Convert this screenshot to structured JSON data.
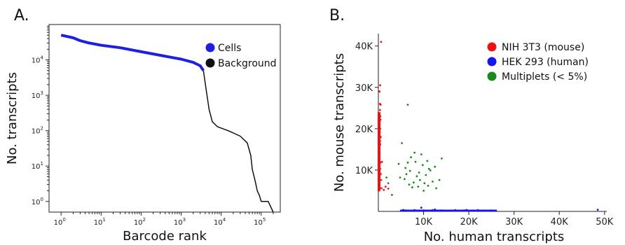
{
  "panels": {
    "a_label": "A.",
    "b_label": "B."
  },
  "chart_data": [
    {
      "panel": "A.",
      "type": "line",
      "xlabel": "Barcode rank",
      "ylabel": "No. transcripts",
      "xscale": "log",
      "yscale": "log",
      "xlim": [
        0.5,
        300000
      ],
      "ylim": [
        0.5,
        100000
      ],
      "xticks": [
        {
          "v": 1,
          "base": "10",
          "exp": "0"
        },
        {
          "v": 10,
          "base": "10",
          "exp": "1"
        },
        {
          "v": 100,
          "base": "10",
          "exp": "2"
        },
        {
          "v": 1000,
          "base": "10",
          "exp": "3"
        },
        {
          "v": 10000,
          "base": "10",
          "exp": "4"
        },
        {
          "v": 100000,
          "base": "10",
          "exp": "5"
        }
      ],
      "yticks": [
        {
          "v": 1,
          "base": "10",
          "exp": "0"
        },
        {
          "v": 10,
          "base": "10",
          "exp": "1"
        },
        {
          "v": 100,
          "base": "10",
          "exp": "2"
        },
        {
          "v": 1000,
          "base": "10",
          "exp": "3"
        },
        {
          "v": 10000,
          "base": "10",
          "exp": "4"
        }
      ],
      "legend_position": "top-right",
      "legend": [
        {
          "label": "Cells",
          "color": "#1f1fe0"
        },
        {
          "label": "Background",
          "color": "#111111"
        }
      ],
      "series": [
        {
          "name": "Cells",
          "color": "#1f1fe0",
          "points": [
            [
              1,
              50000
            ],
            [
              2,
              42000
            ],
            [
              3,
              35000
            ],
            [
              5,
              30000
            ],
            [
              10,
              26000
            ],
            [
              30,
              22000
            ],
            [
              100,
              17000
            ],
            [
              300,
              13500
            ],
            [
              1000,
              10500
            ],
            [
              2000,
              8500
            ],
            [
              3000,
              6800
            ],
            [
              3600,
              5000
            ]
          ]
        },
        {
          "name": "Background",
          "color": "#111111",
          "points": [
            [
              3600,
              5000
            ],
            [
              4200,
              1500
            ],
            [
              5000,
              400
            ],
            [
              6000,
              180
            ],
            [
              8000,
              130
            ],
            [
              15000,
              100
            ],
            [
              30000,
              70
            ],
            [
              45000,
              45
            ],
            [
              55000,
              20
            ],
            [
              60000,
              8
            ],
            [
              70000,
              4
            ],
            [
              80000,
              2
            ],
            [
              90000,
              1.5
            ],
            [
              100000,
              1
            ],
            [
              150000,
              1
            ],
            [
              200000,
              0.5
            ]
          ]
        }
      ]
    },
    {
      "panel": "B.",
      "type": "scatter",
      "xlabel": "No. human transcripts",
      "ylabel": "No. mouse transcripts",
      "xlim": [
        0,
        50500
      ],
      "ylim": [
        0,
        43000
      ],
      "xticks": [
        "10K",
        "20K",
        "30K",
        "40K",
        "50K"
      ],
      "xtick_values": [
        10000,
        20000,
        30000,
        40000,
        50000
      ],
      "yticks": [
        "10K",
        "20K",
        "30K",
        "40K"
      ],
      "ytick_values": [
        10000,
        20000,
        30000,
        40000
      ],
      "legend_position": "top-right",
      "legend": [
        {
          "label": "NIH 3T3 (mouse)",
          "color": "#ee1111"
        },
        {
          "label": "HEK 293 (human)",
          "color": "#1515ee"
        },
        {
          "label": "Multiplets (< 5%)",
          "color": "#1a8a1a"
        }
      ],
      "series": [
        {
          "name": "NIH 3T3 (mouse)",
          "color": "#ee1111",
          "points": [
            [
              100,
              5000
            ],
            [
              150,
              6500
            ],
            [
              200,
              8000
            ],
            [
              300,
              9500
            ],
            [
              150,
              11000
            ],
            [
              250,
              12500
            ],
            [
              300,
              14000
            ],
            [
              200,
              15500
            ],
            [
              350,
              17000
            ],
            [
              250,
              18500
            ],
            [
              400,
              20000
            ],
            [
              300,
              21500
            ],
            [
              450,
              23000
            ],
            [
              350,
              24500
            ],
            [
              500,
              25800
            ],
            [
              400,
              30500
            ],
            [
              600,
              41000
            ],
            [
              120,
              7200
            ],
            [
              380,
              10300
            ],
            [
              280,
              13200
            ],
            [
              420,
              16200
            ],
            [
              330,
              19200
            ],
            [
              480,
              22200
            ],
            [
              220,
              6000
            ],
            [
              540,
              9000
            ],
            [
              460,
              11800
            ],
            [
              180,
              16800
            ],
            [
              520,
              18000
            ],
            [
              360,
              26000
            ],
            [
              250,
              29000
            ],
            [
              700,
              5600
            ],
            [
              1200,
              5200
            ],
            [
              1600,
              6000
            ],
            [
              2200,
              5500
            ],
            [
              800,
              12000
            ],
            [
              600,
              7600
            ]
          ]
        },
        {
          "name": "HEK 293 (human)",
          "color": "#1515ee",
          "points": [
            [
              5000,
              200
            ],
            [
              6000,
              250
            ],
            [
              7000,
              150
            ],
            [
              8000,
              300
            ],
            [
              9000,
              200
            ],
            [
              10000,
              250
            ],
            [
              11000,
              150
            ],
            [
              12000,
              300
            ],
            [
              13000,
              200
            ],
            [
              14000,
              250
            ],
            [
              15000,
              200
            ],
            [
              16000,
              150
            ],
            [
              17000,
              300
            ],
            [
              18000,
              200
            ],
            [
              19000,
              250
            ],
            [
              20000,
              150
            ],
            [
              21000,
              200
            ],
            [
              22000,
              300
            ],
            [
              23000,
              200
            ],
            [
              24000,
              150
            ],
            [
              25000,
              250
            ],
            [
              26000,
              200
            ],
            [
              9500,
              900
            ],
            [
              48500,
              400
            ],
            [
              5500,
              350
            ],
            [
              12500,
              450
            ],
            [
              19500,
              350
            ]
          ]
        },
        {
          "name": "Multiplets (< 5%)",
          "color": "#1a8a1a",
          "points": [
            [
              6500,
              25800
            ],
            [
              5200,
              16500
            ],
            [
              8000,
              14200
            ],
            [
              9500,
              13800
            ],
            [
              4500,
              11500
            ],
            [
              6000,
              10500
            ],
            [
              7000,
              9800
            ],
            [
              8500,
              8500
            ],
            [
              9200,
              7600
            ],
            [
              10500,
              8800
            ],
            [
              11500,
              9900
            ],
            [
              12000,
              7200
            ],
            [
              6800,
              6500
            ],
            [
              7500,
              5800
            ],
            [
              10000,
              5000
            ],
            [
              11000,
              6200
            ],
            [
              12500,
              10800
            ],
            [
              13500,
              7600
            ],
            [
              14000,
              12800
            ],
            [
              9800,
              11200
            ],
            [
              8200,
              12000
            ],
            [
              5800,
              7800
            ],
            [
              4800,
              8200
            ],
            [
              7800,
              7000
            ],
            [
              9000,
              9400
            ],
            [
              10200,
              6800
            ],
            [
              12800,
              5600
            ],
            [
              3000,
              4000
            ],
            [
              2200,
              6800
            ],
            [
              1800,
              8200
            ],
            [
              6200,
              9000
            ],
            [
              8800,
              6000
            ],
            [
              11200,
              10300
            ],
            [
              10800,
              12200
            ],
            [
              7200,
              13100
            ],
            [
              6500,
              11800
            ]
          ]
        }
      ]
    }
  ]
}
